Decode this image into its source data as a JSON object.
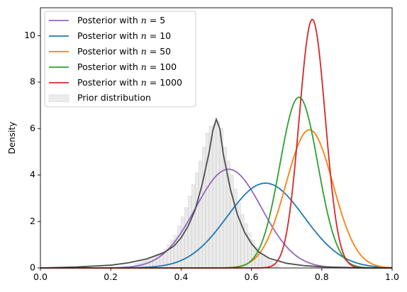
{
  "chart_data": {
    "type": "line",
    "xlabel": "",
    "ylabel": "Density",
    "xlim": [
      0.0,
      1.0
    ],
    "ylim": [
      0,
      11.2
    ],
    "xticks": [
      "0.0",
      "0.2",
      "0.4",
      "0.6",
      "0.8",
      "1.0"
    ],
    "yticks": [
      "0",
      "2",
      "4",
      "6",
      "8",
      "10"
    ],
    "grid": false,
    "legend_position": "top-left",
    "prior": {
      "name": "Prior distribution",
      "color": "#bdbdbd",
      "kde_color": "#4d4d4d",
      "bin_width": 0.01,
      "x": [
        0.27,
        0.28,
        0.29,
        0.3,
        0.31,
        0.32,
        0.33,
        0.34,
        0.35,
        0.36,
        0.37,
        0.38,
        0.39,
        0.4,
        0.41,
        0.42,
        0.43,
        0.44,
        0.45,
        0.46,
        0.47,
        0.48,
        0.49,
        0.5,
        0.51,
        0.52,
        0.53,
        0.54,
        0.55,
        0.56,
        0.57,
        0.58,
        0.59,
        0.6,
        0.61,
        0.62,
        0.63,
        0.64,
        0.65,
        0.66,
        0.67
      ],
      "values": [
        0.2,
        0.25,
        0.3,
        0.35,
        0.4,
        0.5,
        0.6,
        0.7,
        0.8,
        1.0,
        1.2,
        1.4,
        1.8,
        2.2,
        2.6,
        3.1,
        3.6,
        4.1,
        4.6,
        5.2,
        5.8,
        6.1,
        6.2,
        6.3,
        6.0,
        5.2,
        4.6,
        4.0,
        3.4,
        2.8,
        2.3,
        1.9,
        1.5,
        1.2,
        0.9,
        0.7,
        0.5,
        0.4,
        0.3,
        0.2,
        0.15
      ],
      "kde_x": [
        0.0,
        0.1,
        0.2,
        0.25,
        0.3,
        0.35,
        0.38,
        0.4,
        0.42,
        0.44,
        0.46,
        0.48,
        0.49,
        0.5,
        0.51,
        0.52,
        0.54,
        0.56,
        0.58,
        0.6,
        0.62,
        0.65,
        0.7,
        0.75,
        0.8,
        0.9,
        1.0
      ],
      "kde_y": [
        0.0,
        0.04,
        0.12,
        0.22,
        0.38,
        0.65,
        0.95,
        1.3,
        1.8,
        2.5,
        3.6,
        5.0,
        5.9,
        6.4,
        6.0,
        4.9,
        3.4,
        2.3,
        1.55,
        1.05,
        0.7,
        0.42,
        0.2,
        0.1,
        0.05,
        0.01,
        0.0
      ]
    },
    "series": [
      {
        "name": "Posterior with n = 5",
        "legend_prefix": "Posterior with ",
        "legend_n": "5",
        "color": "#9467bd",
        "peak_x": 0.535,
        "peak_y": 4.25,
        "sigma": 0.094
      },
      {
        "name": "Posterior with n = 10",
        "legend_prefix": "Posterior with ",
        "legend_n": "10",
        "color": "#1f77b4",
        "peak_x": 0.64,
        "peak_y": 3.65,
        "sigma": 0.109
      },
      {
        "name": "Posterior with n = 50",
        "legend_prefix": "Posterior with ",
        "legend_n": "50",
        "color": "#ff7f0e",
        "peak_x": 0.765,
        "peak_y": 5.95,
        "sigma": 0.067
      },
      {
        "name": "Posterior with n = 100",
        "legend_prefix": "Posterior with ",
        "legend_n": "100",
        "color": "#2ca02c",
        "peak_x": 0.735,
        "peak_y": 7.35,
        "sigma": 0.054
      },
      {
        "name": "Posterior with n = 1000",
        "legend_prefix": "Posterior with ",
        "legend_n": "1000",
        "color": "#d62728",
        "peak_x": 0.773,
        "peak_y": 10.7,
        "sigma": 0.037
      }
    ]
  }
}
